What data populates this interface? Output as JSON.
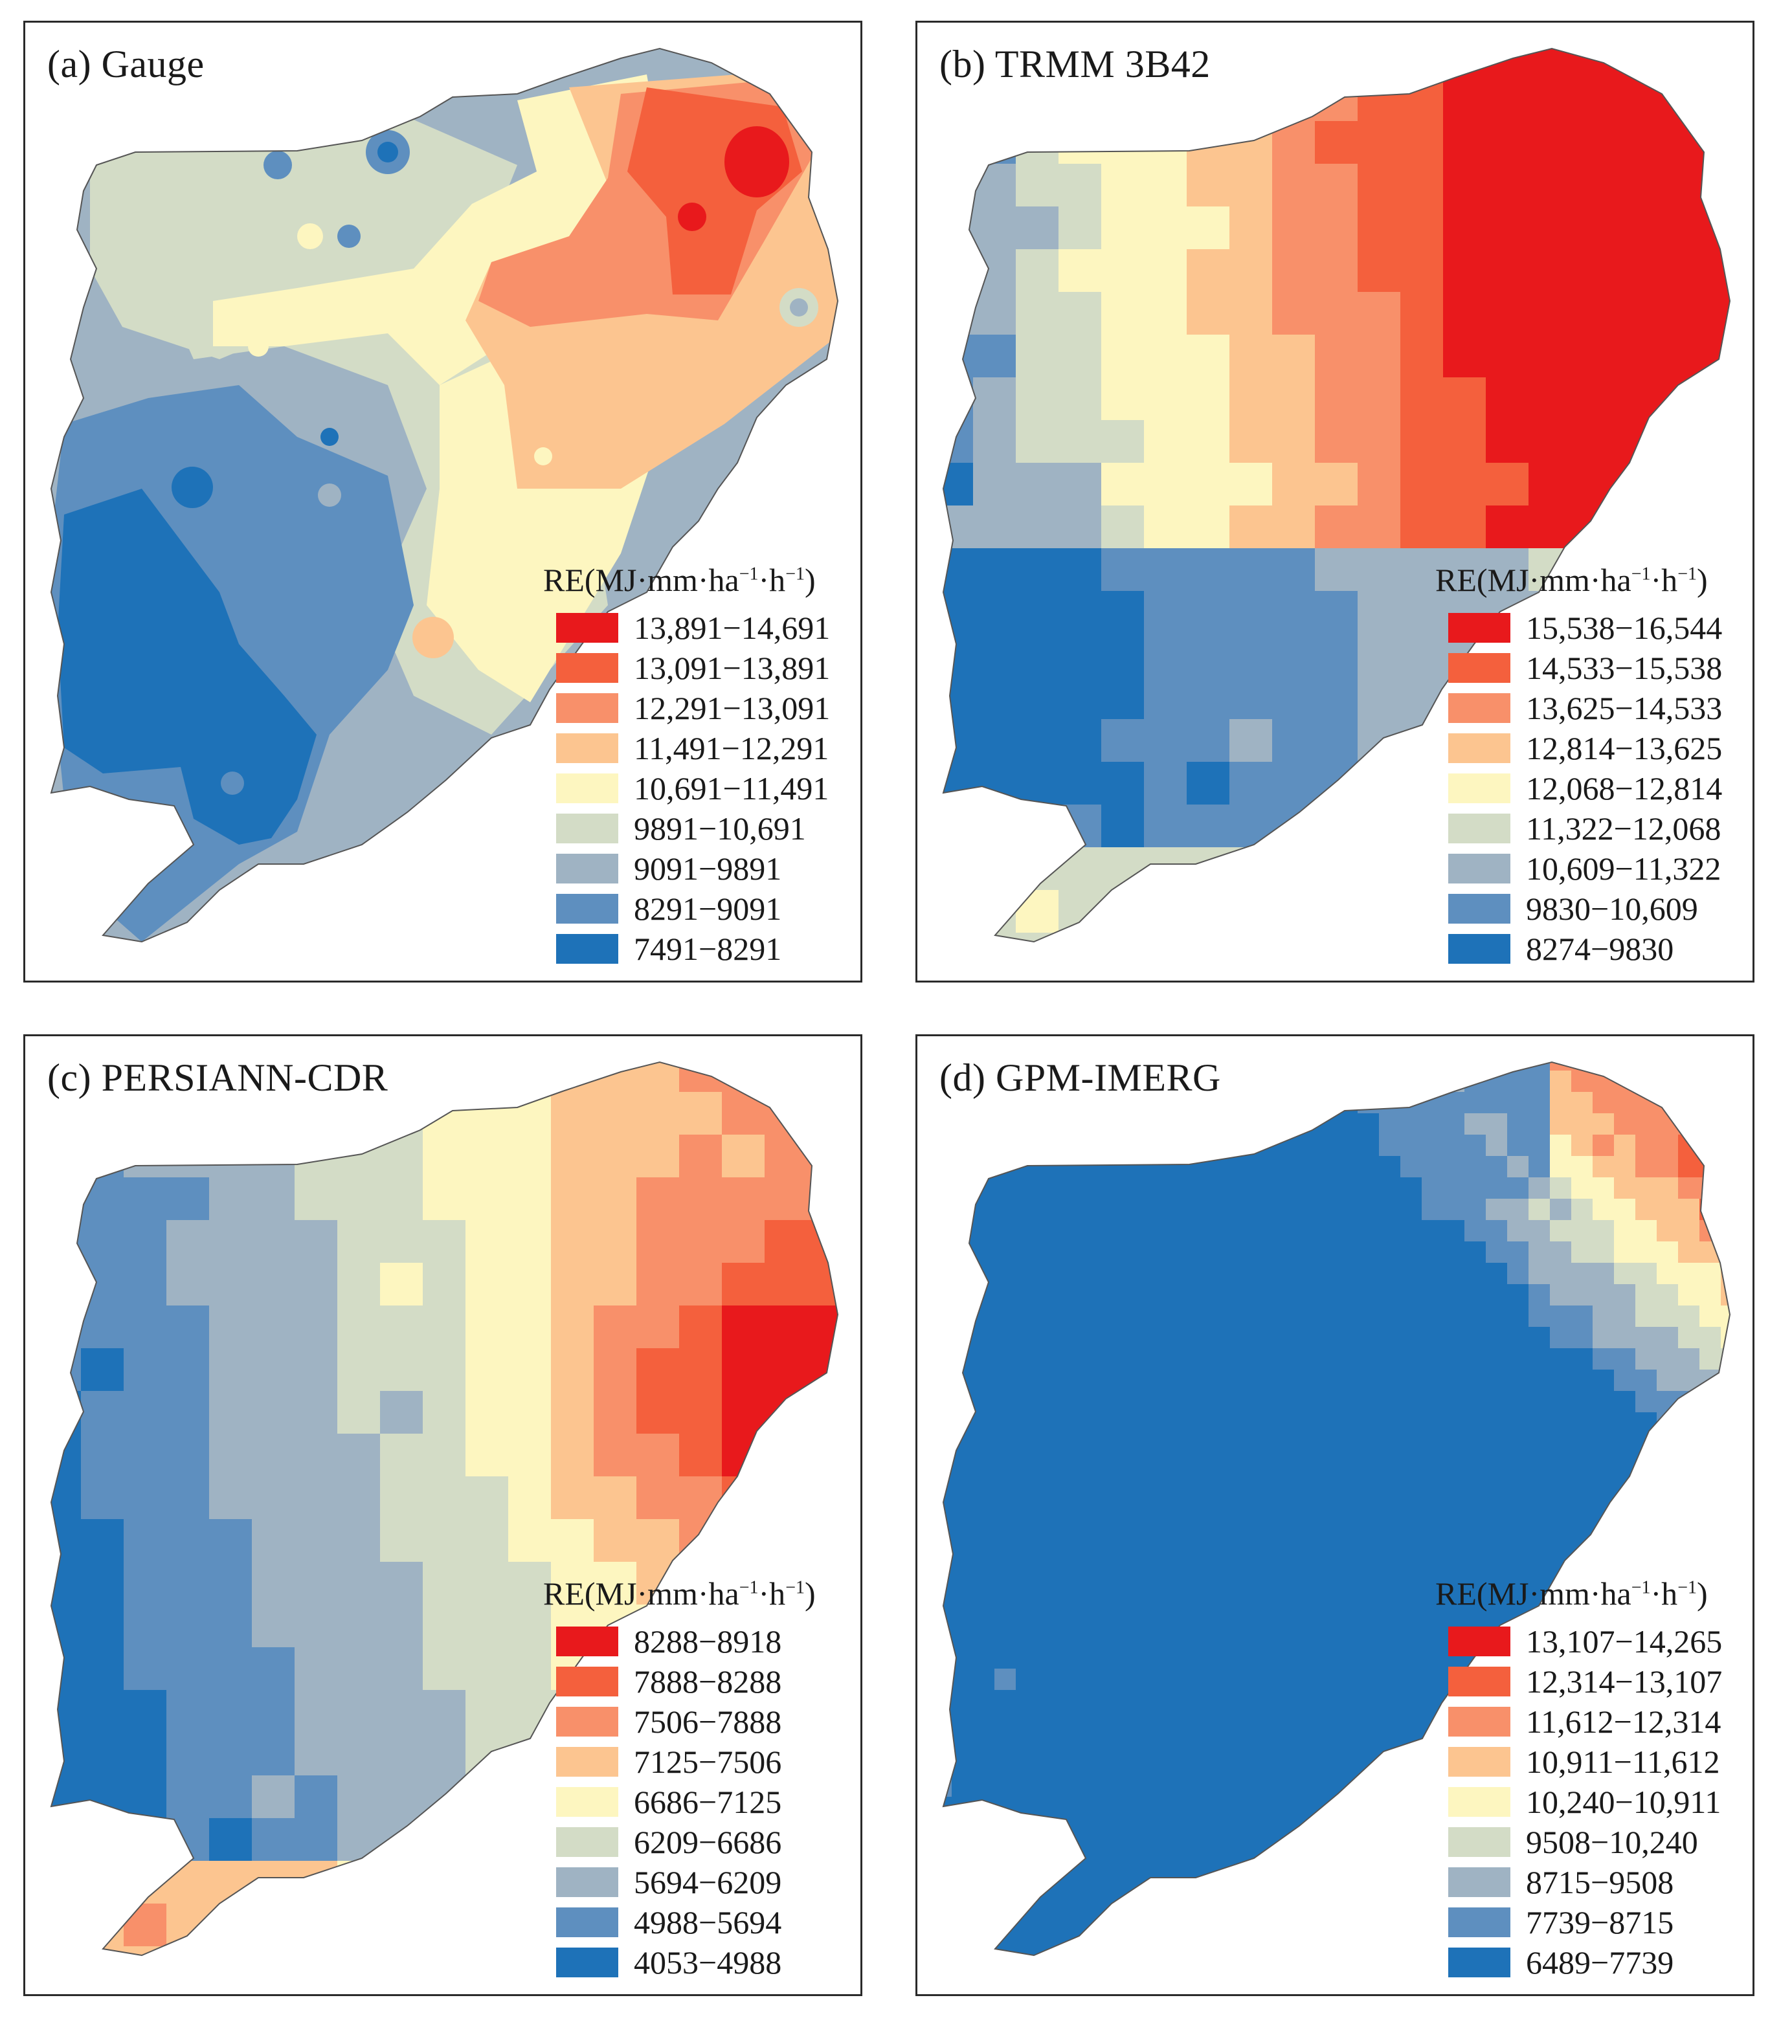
{
  "colors": [
    "#e8191c",
    "#f4603d",
    "#f8906a",
    "#fcc590",
    "#fdf6c0",
    "#d3dcc6",
    "#9fb3c3",
    "#5e8fbf",
    "#1e72b8"
  ],
  "map": {
    "boundary_color": "#555555"
  },
  "legend_title": {
    "prefix": "RE(MJ·mm·ha",
    "sup1": "−1",
    "mid": "·h",
    "sup2": "−1",
    "suffix": ")"
  },
  "panels": [
    {
      "title": "(a) Gauge",
      "legend": [
        "13,891−14,691",
        "13,091−13,891",
        "12,291−13,091",
        "11,491−12,291",
        "10,691−11,491",
        "9891−10,691",
        "9091−9891",
        "8291−9091",
        "7491−8291"
      ]
    },
    {
      "title": "(b) TRMM 3B42",
      "legend": [
        "15,538−16,544",
        "14,533−15,538",
        "13,625−14,533",
        "12,814−13,625",
        "12,068−12,814",
        "11,322−12,068",
        "10,609−11,322",
        "9830−10,609",
        "8274−9830"
      ]
    },
    {
      "title": "(c) PERSIANN-CDR",
      "legend": [
        "8288−8918",
        "7888−8288",
        "7506−7888",
        "7125−7506",
        "6686−7125",
        "6209−6686",
        "5694−6209",
        "4988−5694",
        "4053−4988"
      ]
    },
    {
      "title": "(d) GPM-IMERG",
      "legend": [
        "13,107−14,265",
        "12,314−13,107",
        "11,612−12,314",
        "10,911−11,612",
        "10,240−10,911",
        "9508−10,240",
        "8715−9508",
        "7739−8715",
        "6489−7739"
      ]
    }
  ]
}
